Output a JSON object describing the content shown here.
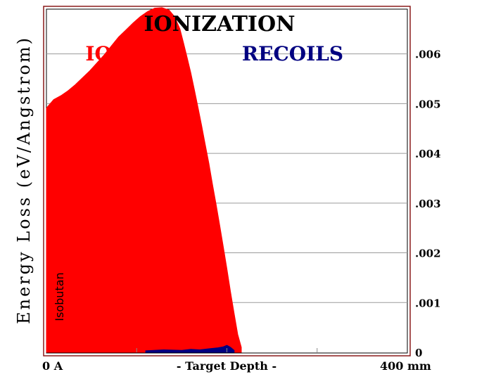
{
  "chart_data": {
    "type": "area",
    "title": "IONIZATION",
    "ylabel": "Energy Loss (eV/Angstrom)",
    "xlabel": "- Target Depth -",
    "x_start_label": "0 A",
    "x_end_label": "400 mm",
    "target_label": "Isobutan",
    "xlim": [
      0,
      400
    ],
    "ylim": [
      0,
      0.0069
    ],
    "yticks": [
      {
        "value": 0,
        "label": "0"
      },
      {
        "value": 0.001,
        "label": ".001"
      },
      {
        "value": 0.002,
        "label": ".002"
      },
      {
        "value": 0.003,
        "label": ".003"
      },
      {
        "value": 0.004,
        "label": ".004"
      },
      {
        "value": 0.005,
        "label": ".005"
      },
      {
        "value": 0.006,
        "label": ".006"
      }
    ],
    "grid": true,
    "series": [
      {
        "name": "IONS",
        "color": "#ff0000",
        "x": [
          0,
          8,
          16,
          24,
          32,
          40,
          48,
          56,
          64,
          72,
          80,
          88,
          96,
          104,
          112,
          120,
          128,
          136,
          142,
          148,
          152,
          156,
          160,
          164,
          168,
          172,
          176,
          180,
          184,
          188,
          192,
          196,
          200,
          204,
          208,
          212,
          216
        ],
        "values": [
          0.00491,
          0.00508,
          0.00516,
          0.00526,
          0.00538,
          0.00552,
          0.00566,
          0.00582,
          0.00598,
          0.00616,
          0.00634,
          0.00648,
          0.00662,
          0.00675,
          0.00685,
          0.00692,
          0.00693,
          0.00688,
          0.00675,
          0.0065,
          0.00622,
          0.00592,
          0.00562,
          0.00528,
          0.00492,
          0.00456,
          0.00418,
          0.0038,
          0.00338,
          0.00298,
          0.00256,
          0.00212,
          0.00168,
          0.00122,
          0.00078,
          0.00036,
          0.0001
        ]
      },
      {
        "name": "RECOILS",
        "color": "#000080",
        "x": [
          110,
          130,
          150,
          160,
          170,
          180,
          190,
          196,
          200,
          204,
          208
        ],
        "values": [
          3e-05,
          5e-05,
          4e-05,
          6e-05,
          5e-05,
          7e-05,
          9e-05,
          0.00011,
          0.00014,
          0.0001,
          4e-05
        ]
      }
    ]
  }
}
